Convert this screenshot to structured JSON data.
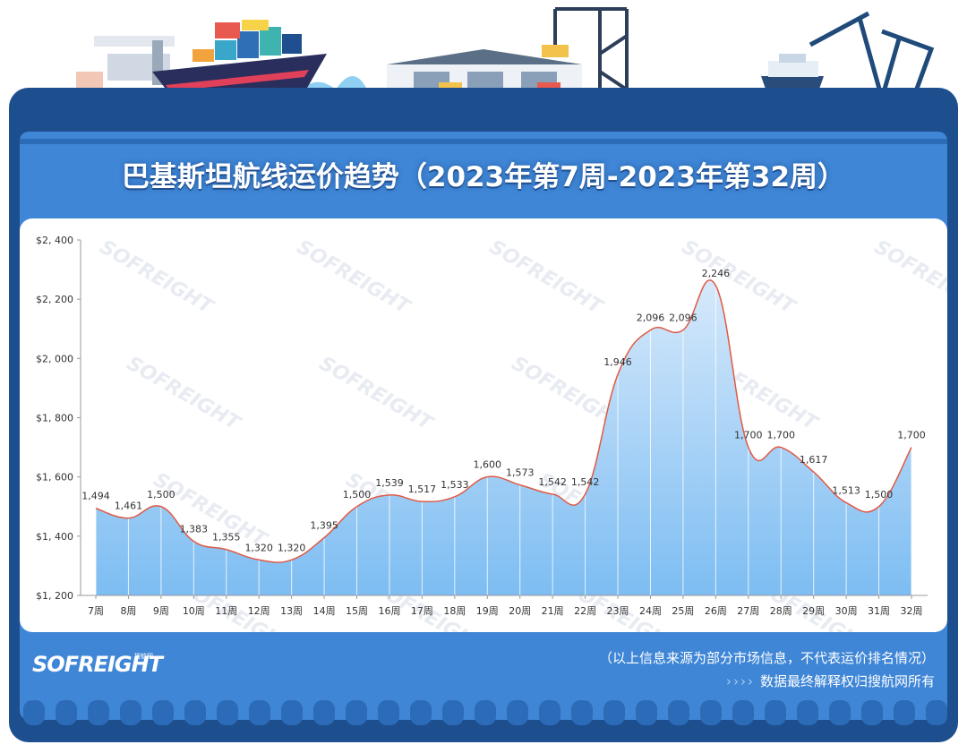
{
  "title": "巴基斯坦航线运价趋势（2023年第7周-2023年第32周）",
  "chart_data": {
    "type": "area",
    "x": [
      "7周",
      "8周",
      "9周",
      "10周",
      "11周",
      "12周",
      "13周",
      "14周",
      "15周",
      "16周",
      "17周",
      "18周",
      "19周",
      "20周",
      "21周",
      "22周",
      "23周",
      "24周",
      "25周",
      "26周",
      "27周",
      "28周",
      "29周",
      "30周",
      "31周",
      "32周"
    ],
    "values": [
      1494,
      1461,
      1500,
      1383,
      1355,
      1320,
      1320,
      1395,
      1500,
      1539,
      1517,
      1533,
      1600,
      1573,
      1542,
      1542,
      1946,
      2096,
      2096,
      2246,
      1700,
      1700,
      1617,
      1513,
      1500,
      1700
    ],
    "value_labels": [
      "1,494",
      "1,461",
      "1,500",
      "1,383",
      "1,355",
      "1,320",
      "1,320",
      "1,395",
      "1,500",
      "1,539",
      "1,517",
      "1,533",
      "1,600",
      "1,573",
      "1,542",
      "1,542",
      "1,946",
      "2,096",
      "2,096",
      "2,246",
      "1,700",
      "1,700",
      "1,617",
      "1,513",
      "1,500",
      "1,700"
    ],
    "ylim": [
      1200,
      2400
    ],
    "yticks": [
      "$1, 200",
      "$1, 400",
      "$1, 600",
      "$1, 800",
      "$2, 000",
      "$2, 200",
      "$2, 400"
    ],
    "ytick_values": [
      1200,
      1400,
      1600,
      1800,
      2000,
      2200,
      2400
    ],
    "line_color": "#e05a45",
    "fill_top_color": "#d6e9fb",
    "fill_bottom_color": "#7dbdf2",
    "grid": false
  },
  "watermark": "SOFREIGHT",
  "footer": {
    "logo": "SOFREIGHT",
    "logo_sub": "搜航网",
    "disclaimer": "（以上信息来源为部分市场信息，不代表运价排名情况）",
    "chevrons": "››››",
    "credit": "数据最终解释权归搜航网所有"
  },
  "colors": {
    "frame": "#1d4f8f",
    "inner": "#3f86d6",
    "panel": "#ffffff"
  }
}
